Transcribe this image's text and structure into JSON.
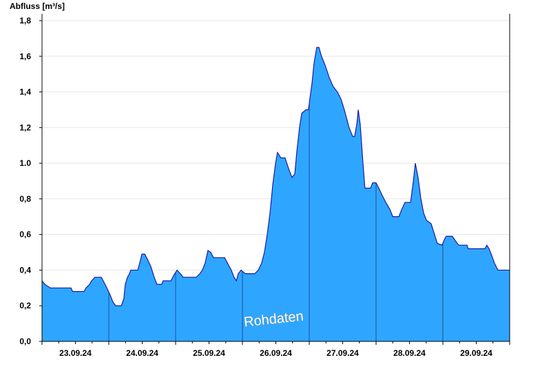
{
  "chart_data": {
    "type": "area",
    "y_label": "Abfluss [m³/s]",
    "annotation": "Rohdaten",
    "color": "#2ea6ff",
    "line_color": "#1a1aa0",
    "grid": true,
    "x": [
      0,
      1,
      3,
      10.4,
      11,
      15.1,
      15.8,
      17.1,
      17.8,
      19,
      21.3,
      22,
      23.3,
      24.5,
      25.5,
      26.5,
      28.5,
      29.4,
      29.9,
      30.7,
      31.4,
      31.9,
      34.4,
      35.1,
      35.9,
      36.9,
      37.9,
      39.1,
      40.3,
      41.3,
      43,
      43.5,
      46.3,
      47.3,
      48.5,
      49.7,
      50.7,
      55.4,
      56.7,
      57.6,
      58.6,
      59.6,
      60.6,
      61.6,
      65.6,
      66.6,
      68,
      69,
      69.8,
      70.5,
      71.5,
      73,
      76.4,
      77.7,
      78.9,
      79.9,
      80.9,
      81.9,
      82.9,
      83.9,
      84.6,
      85.8,
      87.3,
      88.8,
      89.8,
      90.8,
      91.5,
      92.5,
      93.3,
      94.8,
      95.7,
      96.2,
      97,
      97.7,
      98.7,
      99.5,
      100.4,
      101.7,
      103.2,
      104.6,
      106.1,
      107.4,
      108.6,
      110.3,
      111.6,
      112.3,
      113.1,
      113.6,
      114.3,
      115.3,
      116,
      118,
      118.8,
      120,
      121,
      122.2,
      123.5,
      125,
      126,
      128.2,
      129.2,
      130.4,
      132.4,
      133.4,
      134.1,
      135.1,
      136.1,
      137.1,
      138.1,
      139.8,
      141,
      142,
      143.7,
      144.5,
      145.2,
      147.4,
      148.7,
      149.7,
      152.7,
      153.1,
      159.1,
      159.8,
      160.6,
      161.6,
      162.5,
      163.8,
      168
    ],
    "values": [
      0.34,
      0.32,
      0.3,
      0.3,
      0.28,
      0.28,
      0.3,
      0.32,
      0.34,
      0.36,
      0.36,
      0.34,
      0.3,
      0.26,
      0.22,
      0.2,
      0.2,
      0.24,
      0.32,
      0.36,
      0.38,
      0.4,
      0.4,
      0.44,
      0.49,
      0.49,
      0.46,
      0.42,
      0.36,
      0.32,
      0.32,
      0.34,
      0.34,
      0.37,
      0.4,
      0.38,
      0.36,
      0.36,
      0.38,
      0.4,
      0.44,
      0.51,
      0.5,
      0.47,
      0.47,
      0.44,
      0.4,
      0.36,
      0.34,
      0.38,
      0.4,
      0.38,
      0.38,
      0.4,
      0.44,
      0.5,
      0.6,
      0.72,
      0.88,
      1.0,
      1.06,
      1.03,
      1.03,
      0.96,
      0.92,
      0.94,
      1.06,
      1.2,
      1.28,
      1.3,
      1.3,
      1.36,
      1.45,
      1.56,
      1.65,
      1.65,
      1.6,
      1.55,
      1.48,
      1.43,
      1.4,
      1.36,
      1.3,
      1.2,
      1.15,
      1.15,
      1.22,
      1.3,
      1.22,
      1.0,
      0.86,
      0.86,
      0.89,
      0.89,
      0.86,
      0.82,
      0.78,
      0.74,
      0.7,
      0.7,
      0.74,
      0.78,
      0.78,
      0.9,
      1.0,
      0.92,
      0.8,
      0.72,
      0.68,
      0.66,
      0.6,
      0.55,
      0.54,
      0.57,
      0.59,
      0.59,
      0.56,
      0.54,
      0.54,
      0.52,
      0.52,
      0.54,
      0.52,
      0.48,
      0.44,
      0.4,
      0.4
    ],
    "xlim": [
      0,
      168
    ],
    "xticks": [
      {
        "value": 12,
        "label": "23.09.24"
      },
      {
        "value": 36,
        "label": "24.09.24"
      },
      {
        "value": 60,
        "label": "25.09.24"
      },
      {
        "value": 84,
        "label": "26.09.24"
      },
      {
        "value": 108,
        "label": "27.09.24"
      },
      {
        "value": 132,
        "label": "28.09.24"
      },
      {
        "value": 156,
        "label": "29.09.24"
      }
    ],
    "ylim": [
      0,
      1.8
    ],
    "yticks": [
      {
        "value": 0,
        "label": "0,0"
      },
      {
        "value": 0.2,
        "label": "0,2"
      },
      {
        "value": 0.4,
        "label": "0,4"
      },
      {
        "value": 0.6,
        "label": "0,6"
      },
      {
        "value": 0.8,
        "label": "0,8"
      },
      {
        "value": 1.0,
        "label": "1.0"
      },
      {
        "value": 1.2,
        "label": "1,2"
      },
      {
        "value": 1.4,
        "label": "1,4"
      },
      {
        "value": 1.6,
        "label": "1,6"
      },
      {
        "value": 1.8,
        "label": "1,8"
      }
    ]
  }
}
